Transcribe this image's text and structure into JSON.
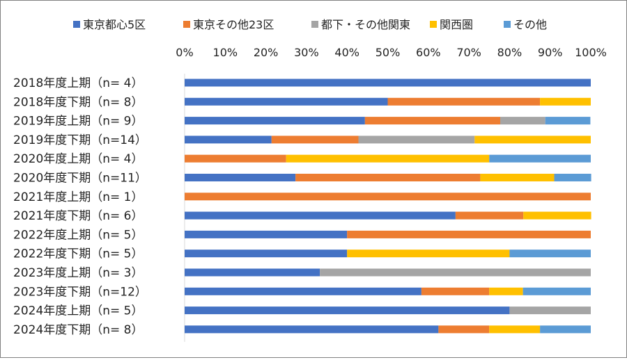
{
  "chart_data": {
    "type": "bar",
    "orientation": "horizontal",
    "stacked": "percent",
    "title": "",
    "xlabel": "",
    "ylabel": "",
    "xlim": [
      0,
      100
    ],
    "x_ticks": [
      "0%",
      "10%",
      "20%",
      "30%",
      "40%",
      "50%",
      "60%",
      "70%",
      "80%",
      "90%",
      "100%"
    ],
    "x_axis_position": "top",
    "grid": false,
    "legend_position": "top",
    "categories": [
      "2018年度上期（n=  4）",
      "2018年度下期（n=  8）",
      "2019年度上期（n=  9）",
      "2019年度下期（n=14）",
      "2020年度上期（n=  4）",
      "2020年度下期（n=11）",
      "2021年度上期（n=  1）",
      "2021年度下期（n=  6）",
      "2022年度上期（n=  5）",
      "2022年度下期（n=  5）",
      "2023年度上期（n=  3）",
      "2023年度下期（n=12）",
      "2024年度上期（n=  5）",
      "2024年度下期（n=  8）"
    ],
    "series": [
      {
        "name": "東京都心5区",
        "color": "#4472c4",
        "values": [
          100,
          50,
          44.4,
          21.4,
          0,
          27.3,
          0,
          66.7,
          40,
          40,
          33.3,
          58.3,
          80,
          62.5
        ]
      },
      {
        "name": "東京その他23区",
        "color": "#ed7d31",
        "values": [
          0,
          37.5,
          33.3,
          21.4,
          25,
          45.5,
          100,
          16.7,
          60,
          0,
          0,
          16.7,
          0,
          12.5
        ]
      },
      {
        "name": "都下・その他関東",
        "color": "#a5a5a5",
        "values": [
          0,
          0,
          11.1,
          28.6,
          0,
          0,
          0,
          0,
          0,
          0,
          66.7,
          0,
          20,
          0
        ]
      },
      {
        "name": "関西圏",
        "color": "#ffc000",
        "values": [
          0,
          12.5,
          0,
          28.6,
          50,
          18.2,
          0,
          16.7,
          0,
          40,
          0,
          8.3,
          0,
          12.5
        ]
      },
      {
        "name": "その他",
        "color": "#5b9bd5",
        "values": [
          0,
          0,
          11.1,
          0,
          25,
          9.1,
          0,
          0,
          0,
          20,
          0,
          16.7,
          0,
          12.5
        ]
      }
    ]
  }
}
